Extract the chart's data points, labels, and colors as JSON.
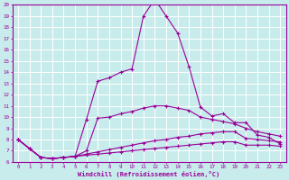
{
  "xlabel": "Windchill (Refroidissement éolien,°C)",
  "background_color": "#c8ecec",
  "grid_color": "#ffffff",
  "line_color": "#990099",
  "x_values": [
    0,
    1,
    2,
    3,
    4,
    5,
    6,
    7,
    8,
    9,
    10,
    11,
    12,
    13,
    14,
    15,
    16,
    17,
    18,
    19,
    20,
    21,
    22,
    23
  ],
  "ylim": [
    6,
    20
  ],
  "xlim": [
    -0.5,
    23.5
  ],
  "yticks": [
    6,
    7,
    8,
    9,
    10,
    11,
    12,
    13,
    14,
    15,
    16,
    17,
    18,
    19,
    20
  ],
  "line_main": [
    8.0,
    7.2,
    6.4,
    6.3,
    6.4,
    6.5,
    9.8,
    13.2,
    13.5,
    14.0,
    14.3,
    19.0,
    20.5,
    19.0,
    17.5,
    14.5,
    10.9,
    10.1,
    10.3,
    9.5,
    9.5,
    8.4,
    8.2,
    7.6
  ],
  "line_mid": [
    8.0,
    7.2,
    6.4,
    6.3,
    6.4,
    6.5,
    7.0,
    9.9,
    10.0,
    10.3,
    10.5,
    10.8,
    11.0,
    11.0,
    10.8,
    10.6,
    10.0,
    9.8,
    9.6,
    9.4,
    9.0,
    8.7,
    8.5,
    8.3
  ],
  "line_low1": [
    8.0,
    7.2,
    6.4,
    6.3,
    6.4,
    6.5,
    6.7,
    6.9,
    7.1,
    7.3,
    7.5,
    7.7,
    7.9,
    8.0,
    8.2,
    8.3,
    8.5,
    8.6,
    8.7,
    8.7,
    8.1,
    8.0,
    7.9,
    7.8
  ],
  "line_low2": [
    8.0,
    7.2,
    6.4,
    6.3,
    6.4,
    6.5,
    6.6,
    6.7,
    6.8,
    6.9,
    7.0,
    7.1,
    7.2,
    7.3,
    7.4,
    7.5,
    7.6,
    7.7,
    7.8,
    7.8,
    7.5,
    7.5,
    7.5,
    7.4
  ]
}
